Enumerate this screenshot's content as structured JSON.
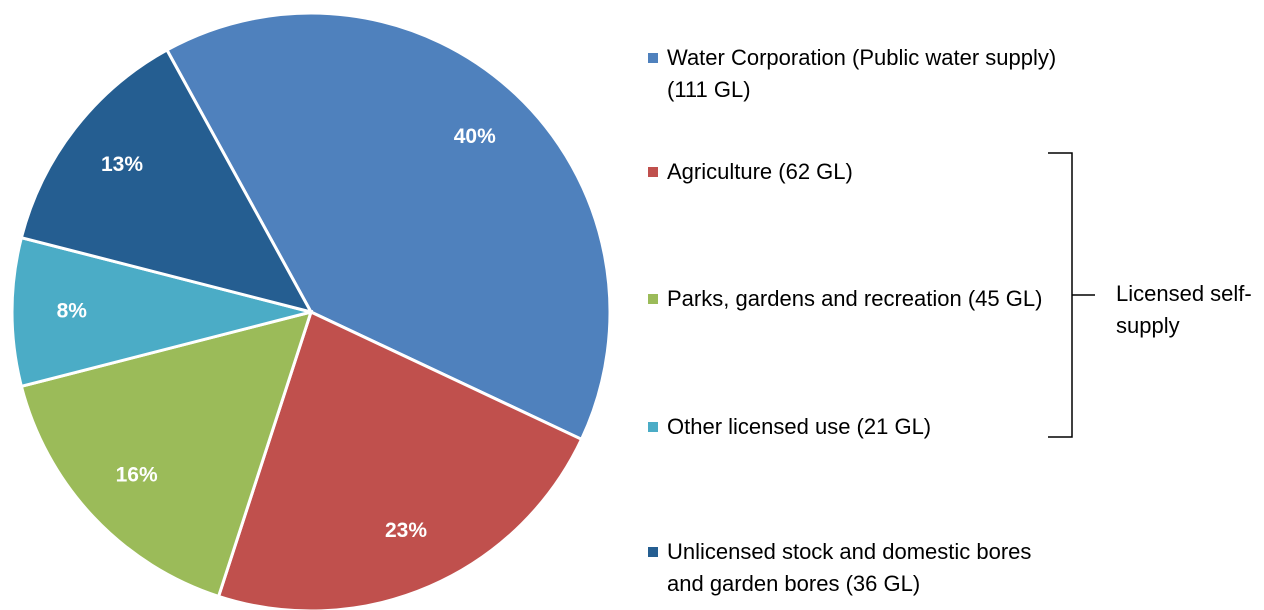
{
  "chart_data": {
    "type": "pie",
    "categories": [
      "Water Corporation (Public water supply) (111 GL)",
      "Agriculture (62 GL)",
      "Parks, gardens and recreation (45 GL)",
      "Other licensed use (21 GL)",
      "Unlicensed stock and domestic bores and garden bores (36 GL)"
    ],
    "values": [
      40,
      23,
      16,
      8,
      13
    ],
    "value_labels": [
      "40%",
      "23%",
      "16%",
      "8%",
      "13%"
    ],
    "colors": [
      "#4f81bd",
      "#c0504d",
      "#9bbb59",
      "#4bacc6",
      "#255e91"
    ],
    "legend": "right",
    "annotations": [
      "Licensed self-supply"
    ]
  }
}
